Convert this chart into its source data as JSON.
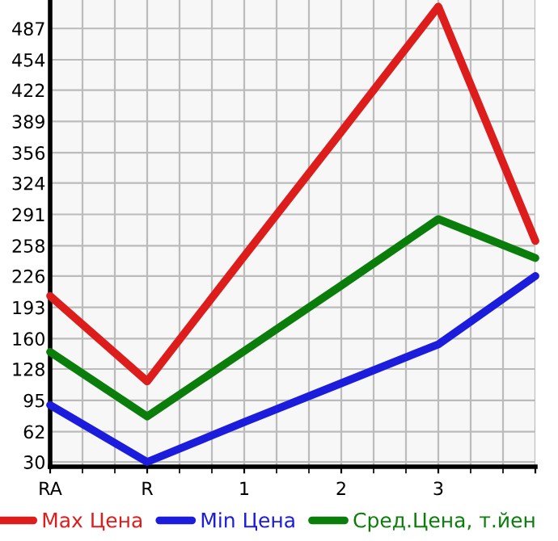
{
  "chart_data": {
    "type": "line",
    "categories": [
      "RA",
      "R",
      "1",
      "2",
      "3",
      null
    ],
    "ylim": [
      25,
      517
    ],
    "yticks": [
      30,
      62,
      95,
      128,
      160,
      193,
      226,
      258,
      291,
      324,
      356,
      389,
      422,
      454,
      487
    ],
    "series": [
      {
        "name": "Max Цена",
        "color": "#dd1c1c",
        "values": [
          205,
          115,
          247,
          378,
          510,
          263
        ]
      },
      {
        "name": "Min Цена",
        "color": "#1c1cdd",
        "values": [
          90,
          30,
          72,
          113,
          154,
          226
        ]
      },
      {
        "name": "Сред.Цена, т.йен",
        "color": "#0a7d0a",
        "values": [
          146,
          78,
          147,
          216,
          286,
          245
        ]
      }
    ],
    "grid": true,
    "legend": "bottom",
    "marker": "none",
    "line_style": "solid"
  }
}
